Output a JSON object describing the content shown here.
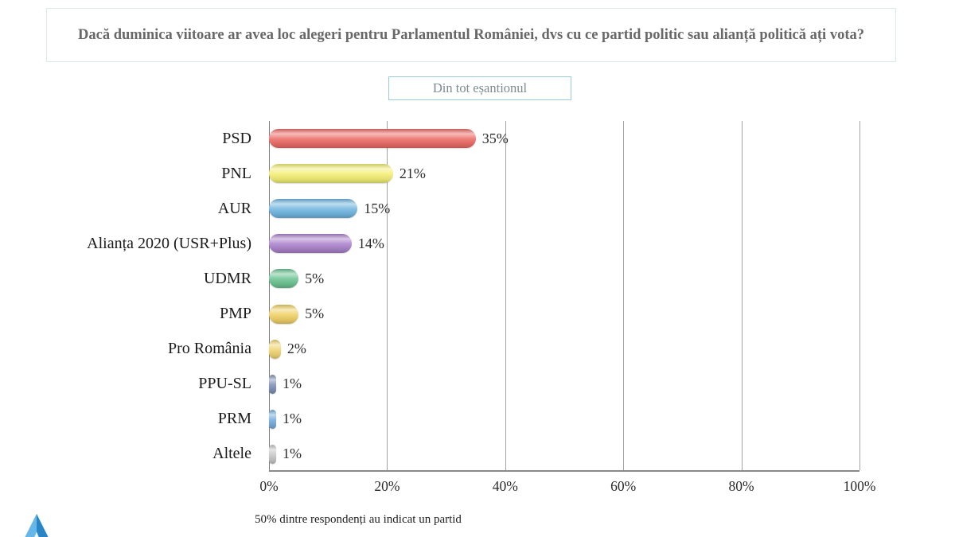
{
  "question": {
    "text": "Dacă duminica viitoare ar avea loc alegeri pentru Parlamentul României, dvs cu ce partid politic sau alianță politică ați vota?"
  },
  "filter": {
    "label": "Din tot eșantionul"
  },
  "chart_data": {
    "type": "bar",
    "orientation": "horizontal",
    "title": "",
    "xlabel": "",
    "ylabel": "",
    "xlim": [
      0,
      100
    ],
    "grid": true,
    "categories": [
      "PSD",
      "PNL",
      "AUR",
      "Alianța 2020 (USR+Plus)",
      "UDMR",
      "PMP",
      "Pro România",
      "PPU-SL",
      "PRM",
      "Altele"
    ],
    "values": [
      35,
      21,
      15,
      14,
      5,
      5,
      2,
      1,
      1,
      1
    ],
    "value_labels": [
      "35%",
      "21%",
      "15%",
      "14%",
      "5%",
      "5%",
      "2%",
      "1%",
      "1%",
      "1%"
    ],
    "bar_colors": [
      "#ed6d68",
      "#f4f077",
      "#72b6e1",
      "#ac83cd",
      "#6dc493",
      "#f0d166",
      "#f0d573",
      "#8191b9",
      "#76aedd",
      "#c7c7c7"
    ],
    "x_ticks": [
      "0%",
      "20%",
      "40%",
      "60%",
      "80%",
      "100%"
    ],
    "x_tick_values": [
      0,
      20,
      40,
      60,
      80,
      100
    ],
    "note": "50% dintre respondenți au indicat un partid"
  },
  "logo": {
    "name": "pollster-triangle-logo",
    "color_light": "#64b7e8",
    "color_mid": "#3e9ad9",
    "color_dark": "#2a85c6"
  },
  "colors": {
    "question_border": "#dfe9ec",
    "filter_border": "#98cbdb",
    "gridline": "#a3a3a3",
    "axis": "#808080"
  }
}
